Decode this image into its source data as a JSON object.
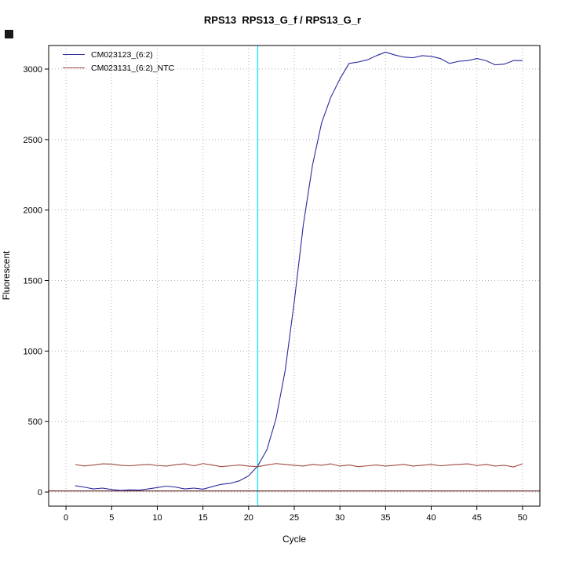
{
  "chart_data": {
    "type": "line",
    "title": "RPS13  RPS13_G_f / RPS13_G_r",
    "xlabel": "Cycle",
    "ylabel": "Fluorescent",
    "xlim": [
      -1.9,
      51.9
    ],
    "ylim": [
      -100,
      3167
    ],
    "x_ticks": [
      0,
      5,
      10,
      15,
      20,
      25,
      30,
      35,
      40,
      45,
      50
    ],
    "y_ticks": [
      0,
      500,
      1000,
      1500,
      2000,
      2500,
      3000
    ],
    "grid": "dotted",
    "grid_color": "#b3b3b3",
    "legend_position": "top-left",
    "threshold_vline": {
      "x": 21,
      "color": "#00eaff"
    },
    "baseline_hline": {
      "y": 8,
      "color": "#6e3030"
    },
    "x": [
      1,
      2,
      3,
      4,
      5,
      6,
      7,
      8,
      9,
      10,
      11,
      12,
      13,
      14,
      15,
      16,
      17,
      18,
      19,
      20,
      21,
      22,
      23,
      24,
      25,
      26,
      27,
      28,
      29,
      30,
      31,
      32,
      33,
      34,
      35,
      36,
      37,
      38,
      39,
      40,
      41,
      42,
      43,
      44,
      45,
      46,
      47,
      48,
      49,
      50
    ],
    "series": [
      {
        "name": "CM023123_(6:2)",
        "color": "#2a2a9e",
        "values": [
          45,
          35,
          22,
          28,
          18,
          12,
          16,
          14,
          22,
          32,
          42,
          35,
          22,
          28,
          20,
          38,
          55,
          62,
          80,
          115,
          185,
          300,
          520,
          860,
          1350,
          1900,
          2320,
          2620,
          2800,
          2930,
          3040,
          3050,
          3065,
          3095,
          3120,
          3100,
          3085,
          3080,
          3095,
          3090,
          3075,
          3040,
          3055,
          3060,
          3075,
          3060,
          3030,
          3035,
          3060,
          3060
        ]
      },
      {
        "name": "CM023131_(6:2)_NTC",
        "color": "#a0483e",
        "values": [
          195,
          185,
          192,
          200,
          198,
          190,
          186,
          192,
          196,
          188,
          184,
          194,
          200,
          186,
          202,
          192,
          180,
          186,
          192,
          184,
          180,
          192,
          202,
          196,
          190,
          184,
          196,
          190,
          200,
          184,
          192,
          180,
          186,
          192,
          184,
          190,
          196,
          184,
          190,
          196,
          186,
          192,
          196,
          200,
          188,
          196,
          184,
          190,
          178,
          200
        ]
      }
    ]
  }
}
